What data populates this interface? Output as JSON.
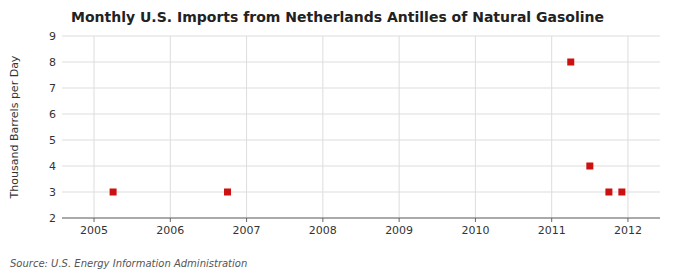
{
  "chart_data": {
    "type": "scatter",
    "title": "Monthly U.S. Imports from Netherlands Antilles of Natural Gasoline",
    "ylabel": "Thousand Barrels per Day",
    "source": "Source: U.S. Energy Information Administration",
    "x": [
      2005.25,
      2006.75,
      2011.25,
      2011.5,
      2011.75,
      2011.92
    ],
    "values": [
      3,
      3,
      8,
      4,
      3,
      3
    ],
    "color": "#cc1111",
    "marker": "square",
    "xlim": [
      2004.58,
      2012.42
    ],
    "ylim": [
      2,
      9
    ],
    "xticks": [
      2005,
      2006,
      2007,
      2008,
      2009,
      2010,
      2011,
      2012
    ],
    "yticks": [
      2,
      3,
      4,
      5,
      6,
      7,
      8,
      9
    ],
    "grid": true
  }
}
